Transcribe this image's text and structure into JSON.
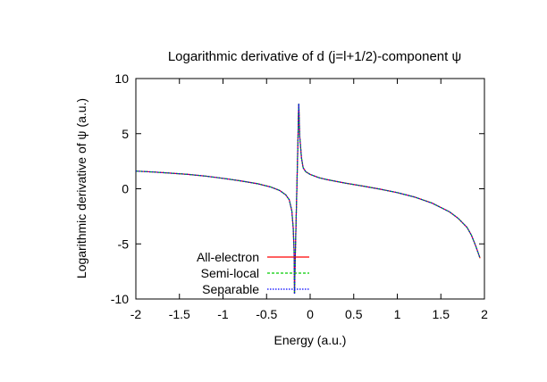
{
  "chart_data": {
    "type": "line",
    "title": "Logarithmic derivative of d (j=l+1/2)-component ψ",
    "xlabel": "Energy (a.u.)",
    "ylabel": "Logarithmic derivative of ψ (a.u.)",
    "xlim": [
      -2,
      2
    ],
    "ylim": [
      -10,
      10
    ],
    "xticks": [
      "-2",
      "-1.5",
      "-1",
      "-0.5",
      "0",
      "0.5",
      "1",
      "1.5",
      "2"
    ],
    "yticks": [
      "-10",
      "-5",
      "0",
      "5",
      "10"
    ],
    "grid": false,
    "legend_position": "bottom-left",
    "series": [
      {
        "name": "All-electron",
        "color": "#ff0000",
        "dash": "solid"
      },
      {
        "name": "Semi-local",
        "color": "#00cc00",
        "dash": "dashed"
      },
      {
        "name": "Separable",
        "color": "#0000ff",
        "dash": "dotted"
      }
    ],
    "branches": [
      {
        "x": [
          -2.0,
          -1.8,
          -1.6,
          -1.4,
          -1.2,
          -1.0,
          -0.8,
          -0.6,
          -0.45,
          -0.35,
          -0.28,
          -0.24,
          -0.21,
          -0.195,
          -0.185,
          -0.18
        ],
        "y": [
          1.6,
          1.52,
          1.42,
          1.3,
          1.15,
          0.95,
          0.72,
          0.45,
          0.15,
          -0.15,
          -0.55,
          -1.0,
          -2.0,
          -3.5,
          -5.5,
          -9.5
        ]
      },
      {
        "x": [
          -0.18,
          -0.17,
          -0.16,
          -0.15,
          -0.14,
          -0.135,
          -0.13
        ],
        "y": [
          -9.5,
          -6.0,
          -2.5,
          1.0,
          4.5,
          6.5,
          7.7
        ]
      },
      {
        "x": [
          -0.13,
          -0.12,
          -0.1,
          -0.08,
          -0.05,
          0.0,
          0.1,
          0.2,
          0.4,
          0.6,
          0.8,
          1.0,
          1.2,
          1.4,
          1.6,
          1.7,
          1.8,
          1.85,
          1.9,
          1.95
        ],
        "y": [
          7.7,
          4.8,
          2.8,
          1.9,
          1.55,
          1.3,
          1.0,
          0.82,
          0.52,
          0.25,
          -0.03,
          -0.35,
          -0.75,
          -1.3,
          -2.1,
          -2.7,
          -3.5,
          -4.2,
          -5.2,
          -6.3
        ]
      }
    ]
  }
}
